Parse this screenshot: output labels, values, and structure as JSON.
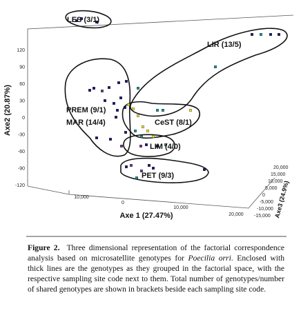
{
  "figure": {
    "axis_labels": {
      "y": "Axe2 (20.87%)",
      "x": "Axe 1 (27.47%)",
      "z": "Axe3 (24.9%)"
    },
    "y_ticks": [
      "120",
      "90",
      "60",
      "30",
      "0",
      "-30",
      "-60",
      "-90",
      "-120"
    ],
    "x_ticks": [
      "10,000",
      "0",
      "10,000",
      "20,000"
    ],
    "z_ticks": [
      "20,000",
      "15,000",
      "10,000",
      "5,000",
      "0",
      "-5,000",
      "-10,000",
      "-15,000"
    ],
    "groups": [
      "LES (3/1)",
      "LIR (13/5)",
      "PREM (9/1)",
      "MAR (14/4)",
      "CeST (8/1)",
      "LIM (4/0)",
      "PET (9/3)"
    ]
  },
  "caption": {
    "label": "Figure 2.",
    "text_1": "Three dimensional representation of the factorial correspondence analysis based on microsatellite genotypes for",
    "species": "Poecilia orri",
    "text_2": ". Enclosed with thick lines are the genotypes as they grouped in the factorial space, with the respective sampling site code next to them. Total number of genotypes/number of shared genotypes are shown in brackets beside each sampling site code."
  }
}
